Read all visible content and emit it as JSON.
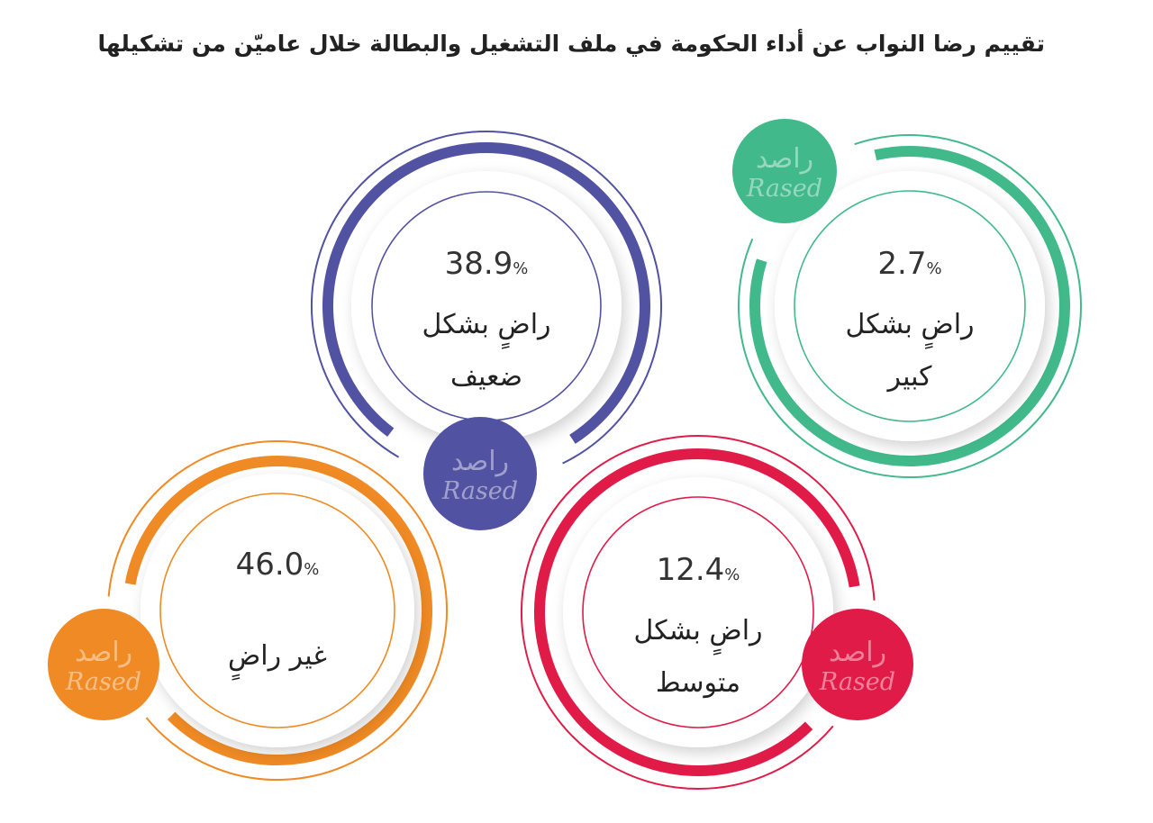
{
  "title": "تقييم رضا النواب عن أداء الحكومة في ملف التشغيل والبطالة خلال عاميّن من تشكيلها",
  "logo": {
    "arabic": "راصد",
    "latin": "Rased"
  },
  "chart_data": {
    "type": "pie",
    "title": "تقييم رضا النواب عن أداء الحكومة في ملف التشغيل والبطالة خلال عاميّن من تشكيلها",
    "unit": "%",
    "items": [
      {
        "label_line1": "راضٍ بشكل",
        "label_line2": "ضعيف",
        "value": 38.9,
        "value_text": "38.9",
        "color": "#5252a3"
      },
      {
        "label_line1": "راضٍ بشكل",
        "label_line2": "كبير",
        "value": 2.7,
        "value_text": "2.7",
        "color": "#41b98a"
      },
      {
        "label_line1": "غير راضٍ",
        "label_line2": "",
        "value": 46.0,
        "value_text": "46.0",
        "color": "#f08a24"
      },
      {
        "label_line1": "راضٍ بشكل",
        "label_line2": "متوسط",
        "value": 12.4,
        "value_text": "12.4",
        "color": "#e01b48"
      }
    ]
  }
}
